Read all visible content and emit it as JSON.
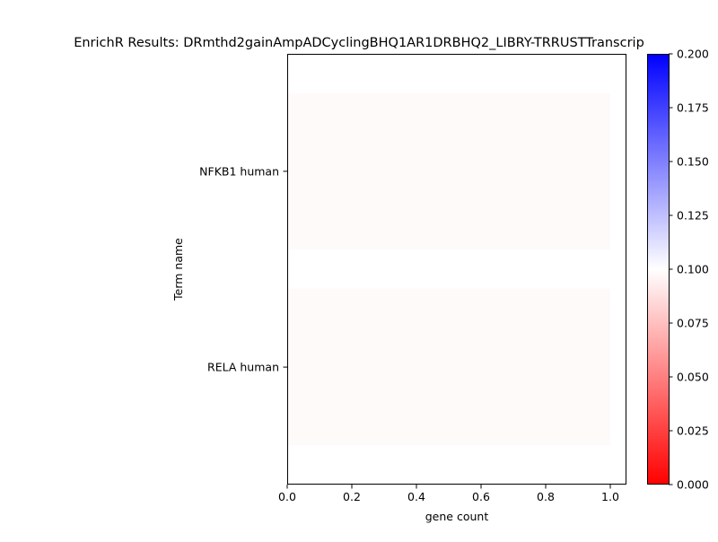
{
  "chart_data": {
    "type": "bar",
    "orientation": "horizontal",
    "title": "EnrichR Results: DRmthd2gainAmpADCyclingBHQ1AR1DRBHQ2_LIBRY-TRRUSTTranscrip",
    "xlabel": "gene count",
    "ylabel": "Term name",
    "categories": [
      "NFKB1 human",
      "RELA human"
    ],
    "values": [
      1,
      1
    ],
    "color_values": [
      0.098,
      0.098
    ],
    "xlim": [
      0,
      1.05
    ],
    "xticks": [
      "0.0",
      "0.2",
      "0.4",
      "0.6",
      "0.8",
      "1.0"
    ],
    "grid": false,
    "colorbar": {
      "range": [
        0.0,
        0.2
      ],
      "ticks": [
        "0.000",
        "0.025",
        "0.050",
        "0.075",
        "0.100",
        "0.125",
        "0.150",
        "0.175",
        "0.200"
      ],
      "colors": {
        "low": "#ff0000",
        "mid": "#ffffff",
        "high": "#0000ff"
      }
    }
  }
}
